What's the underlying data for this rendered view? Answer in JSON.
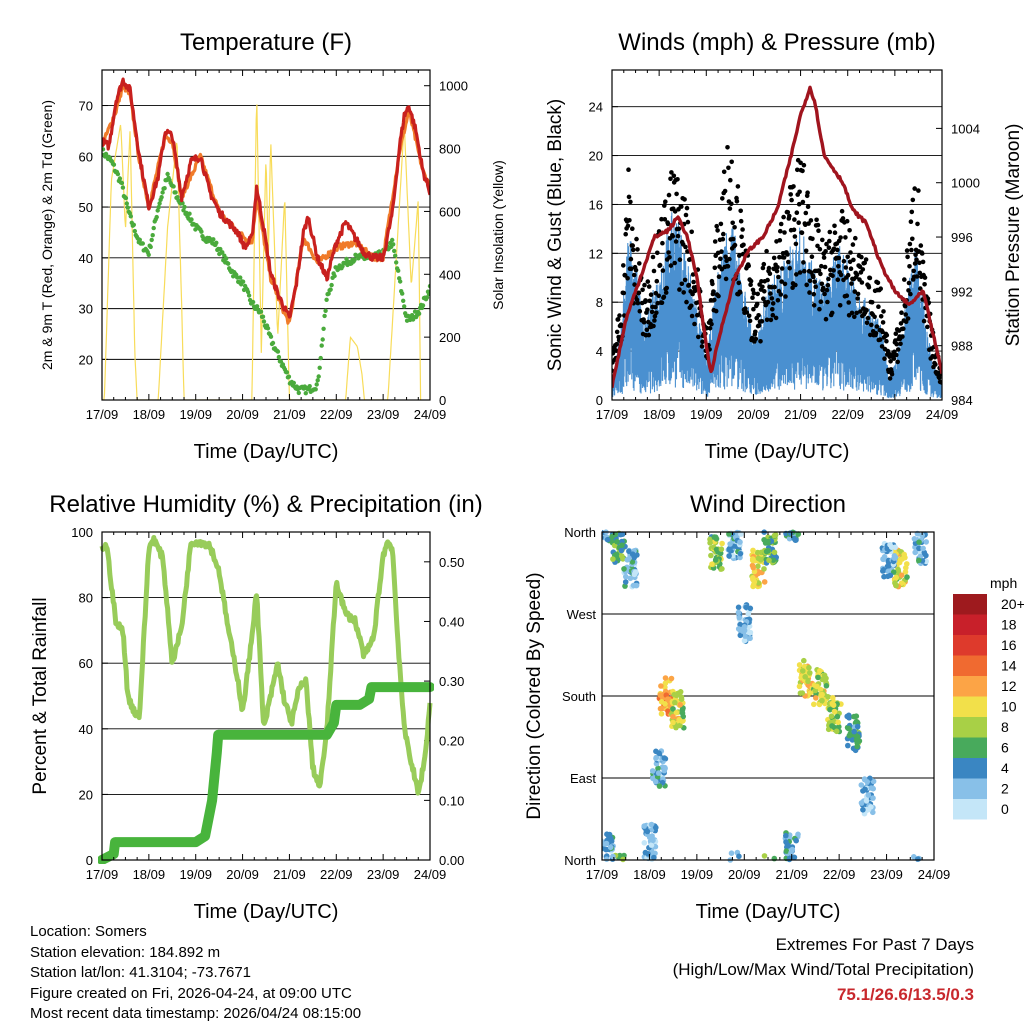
{
  "x_ticks": [
    "17/09",
    "18/09",
    "19/09",
    "20/09",
    "21/09",
    "22/09",
    "23/09",
    "24/09"
  ],
  "x_label": "Time (Day/UTC)",
  "colors": {
    "temp_2m": "#c8201e",
    "temp_9m": "#f07b2a",
    "dewpoint": "#4aaa3c",
    "solar": "#f8dc5a",
    "gust": "#000000",
    "wind": "#4a90d0",
    "pressure": "#a0141e",
    "rh": "#98cc5a",
    "precip": "#48b43c",
    "extremes": "#c8282d"
  },
  "chart_data": [
    {
      "id": "temperature",
      "type": "line",
      "title": "Temperature (F)",
      "ylabel": "2m & 9m T (Red, Orange) & 2m Td (Green)",
      "y2label": "Solar Insolation (Yellow)",
      "xlim": [
        0,
        7
      ],
      "ylim": [
        12,
        77
      ],
      "y2lim": [
        0,
        1050
      ],
      "yticks": [
        20,
        30,
        40,
        50,
        60,
        70
      ],
      "y2ticks": [
        0,
        200,
        400,
        600,
        800,
        1000
      ],
      "grid": true,
      "series": [
        {
          "name": "2m T",
          "axis": "left",
          "x": [
            0,
            0.15,
            0.3,
            0.45,
            0.6,
            0.8,
            1.0,
            1.2,
            1.35,
            1.5,
            1.7,
            1.9,
            2.1,
            2.3,
            2.5,
            2.7,
            2.9,
            3.05,
            3.2,
            3.3,
            3.45,
            3.6,
            3.75,
            3.9,
            4.0,
            4.15,
            4.3,
            4.4,
            4.6,
            4.8,
            5.0,
            5.2,
            5.4,
            5.6,
            5.8,
            6.0,
            6.2,
            6.35,
            6.45,
            6.55,
            6.7,
            6.85,
            7.0
          ],
          "values": [
            63,
            62,
            71,
            75,
            73,
            60,
            50,
            56,
            65,
            64,
            52,
            59,
            60,
            53,
            49,
            47,
            45,
            42,
            44,
            54,
            46,
            37,
            33,
            30,
            28,
            35,
            45,
            48,
            40,
            36,
            43,
            47,
            44,
            41,
            40,
            40,
            49,
            62,
            68,
            70,
            65,
            57,
            53
          ]
        },
        {
          "name": "9m T",
          "axis": "left",
          "x": [
            0,
            0.3,
            0.45,
            0.6,
            0.8,
            1.0,
            1.35,
            1.5,
            1.7,
            2.1,
            2.5,
            2.9,
            3.2,
            3.3,
            3.6,
            3.9,
            4.0,
            4.3,
            4.6,
            5.0,
            5.4,
            5.8,
            6.0,
            6.35,
            6.55,
            6.85,
            7.0
          ],
          "values": [
            62,
            69,
            74,
            72,
            59,
            50,
            64,
            63,
            52,
            60,
            49,
            45,
            43,
            52,
            36,
            29,
            27,
            44,
            39,
            42,
            43,
            40,
            40,
            61,
            69,
            57,
            54
          ]
        },
        {
          "name": "2m Td",
          "axis": "left",
          "x": [
            0,
            0.2,
            0.4,
            0.6,
            0.8,
            1.0,
            1.2,
            1.4,
            1.6,
            1.8,
            2.0,
            2.2,
            2.4,
            2.6,
            2.8,
            3.0,
            3.2,
            3.4,
            3.6,
            3.8,
            4.0,
            4.2,
            4.4,
            4.6,
            4.8,
            5.0,
            5.2,
            5.4,
            5.6,
            5.8,
            6.0,
            6.2,
            6.4,
            6.5,
            6.6,
            6.8,
            7.0
          ],
          "values": [
            61,
            59,
            55,
            48,
            43,
            41,
            50,
            56,
            52,
            49,
            46,
            44,
            43,
            40,
            37,
            35,
            31,
            29,
            24,
            20,
            16,
            14,
            14,
            15,
            32,
            38,
            39,
            40,
            40,
            40,
            41,
            43,
            33,
            28,
            28,
            30,
            34
          ]
        },
        {
          "name": "Solar",
          "axis": "right",
          "x": [
            0,
            0.05,
            0.2,
            0.4,
            0.5,
            0.6,
            0.7,
            0.75,
            1.2,
            1.4,
            1.6,
            1.7,
            1.75,
            3.2,
            3.3,
            3.4,
            3.5,
            3.55,
            3.6,
            3.75,
            3.9,
            4.0,
            5.2,
            5.3,
            5.45,
            5.55,
            5.6,
            6.1,
            6.3,
            6.45,
            6.6,
            6.75,
            6.8
          ],
          "values": [
            0,
            0,
            700,
            880,
            540,
            860,
            150,
            0,
            0,
            550,
            830,
            300,
            0,
            0,
            980,
            150,
            780,
            450,
            830,
            200,
            650,
            0,
            0,
            200,
            170,
            80,
            0,
            0,
            500,
            880,
            360,
            640,
            0
          ]
        }
      ]
    },
    {
      "id": "winds",
      "type": "line",
      "title": "Winds (mph) & Pressure (mb)",
      "ylabel": "Sonic Wind & Gust (Blue, Black)",
      "y2label": "Station Pressure (Maroon)",
      "xlim": [
        0,
        7
      ],
      "ylim": [
        0,
        27
      ],
      "y2lim": [
        984,
        1008.3
      ],
      "yticks": [
        0,
        4,
        8,
        12,
        16,
        20,
        24
      ],
      "y2ticks": [
        984,
        988,
        992,
        996,
        1000,
        1004
      ],
      "grid": true,
      "series": [
        {
          "name": "Gust",
          "axis": "left",
          "x": [
            0,
            0.2,
            0.35,
            0.5,
            0.7,
            1.0,
            1.3,
            1.55,
            1.8,
            2.0,
            2.2,
            2.5,
            2.8,
            3.05,
            3.3,
            3.6,
            3.8,
            4.0,
            4.25,
            4.5,
            4.8,
            5.1,
            5.4,
            5.7,
            5.9,
            6.1,
            6.3,
            6.45,
            6.6,
            6.8,
            7.0
          ],
          "values": [
            3,
            8,
            17,
            12,
            8,
            13,
            17,
            15,
            10,
            5,
            12,
            20,
            12,
            7,
            11,
            13,
            16,
            18,
            14,
            11,
            14,
            12,
            10,
            8,
            3,
            6,
            12,
            18,
            10,
            5,
            2
          ]
        },
        {
          "name": "Wind",
          "axis": "left",
          "x": [
            0,
            0.2,
            0.35,
            0.5,
            0.7,
            1.0,
            1.3,
            1.55,
            1.8,
            2.0,
            2.2,
            2.5,
            2.8,
            3.05,
            3.3,
            3.6,
            3.8,
            4.0,
            4.25,
            4.5,
            4.8,
            5.1,
            5.4,
            5.7,
            5.9,
            6.1,
            6.3,
            6.45,
            6.6,
            6.8,
            7.0
          ],
          "values": [
            1,
            4,
            9,
            7,
            4,
            7,
            10,
            8,
            5,
            2,
            6,
            10,
            6,
            3,
            6,
            7,
            8,
            9,
            7,
            6,
            8,
            7,
            5,
            4,
            1,
            3,
            6,
            9,
            5,
            2,
            1
          ]
        },
        {
          "name": "Pressure",
          "axis": "right",
          "x": [
            0,
            0.3,
            0.6,
            0.9,
            1.2,
            1.4,
            1.6,
            1.8,
            2.0,
            2.1,
            2.3,
            2.6,
            2.9,
            3.2,
            3.5,
            3.8,
            4.0,
            4.2,
            4.3,
            4.5,
            4.7,
            4.9,
            5.1,
            5.4,
            5.7,
            6.0,
            6.3,
            6.6,
            6.8,
            7.0
          ],
          "values": [
            985,
            990,
            993,
            996,
            996.5,
            997.5,
            996,
            993,
            988,
            986,
            989,
            993,
            995,
            996,
            998,
            1002,
            1005,
            1007,
            1006,
            1002,
            1001,
            1000,
            998,
            997,
            994,
            992,
            991,
            992,
            989,
            986
          ]
        }
      ]
    },
    {
      "id": "humidity",
      "type": "line",
      "title": "Relative Humidity (%) & Precipitation (in)",
      "ylabel": "Percent & Total Rainfall",
      "xlim": [
        0,
        7
      ],
      "ylim": [
        0,
        100
      ],
      "y2lim": [
        0,
        0.55
      ],
      "yticks": [
        0,
        20,
        40,
        60,
        80,
        100
      ],
      "y2ticks": [
        "0.00",
        "0.10",
        "0.20",
        "0.30",
        "0.40",
        "0.50"
      ],
      "grid": true,
      "series": [
        {
          "name": "RH",
          "axis": "left",
          "x": [
            0,
            0.1,
            0.3,
            0.45,
            0.55,
            0.7,
            0.8,
            1.0,
            1.1,
            1.3,
            1.5,
            1.7,
            1.9,
            2.1,
            2.3,
            2.5,
            2.7,
            2.9,
            3.0,
            3.15,
            3.3,
            3.45,
            3.6,
            3.75,
            3.9,
            4.05,
            4.2,
            4.35,
            4.5,
            4.65,
            4.8,
            5.0,
            5.2,
            5.4,
            5.6,
            5.8,
            6.0,
            6.1,
            6.2,
            6.3,
            6.45,
            6.6,
            6.75,
            6.9,
            7.0
          ],
          "values": [
            95,
            96,
            72,
            70,
            50,
            45,
            44,
            95,
            98,
            92,
            60,
            71,
            97,
            97,
            96,
            88,
            70,
            55,
            45,
            62,
            82,
            40,
            50,
            60,
            48,
            42,
            52,
            55,
            28,
            22,
            40,
            85,
            75,
            73,
            62,
            68,
            93,
            97,
            95,
            70,
            40,
            30,
            20,
            32,
            48
          ]
        },
        {
          "name": "Precip",
          "axis": "right",
          "x": [
            0,
            0.25,
            0.28,
            0.6,
            1.0,
            1.5,
            2.0,
            2.2,
            2.35,
            2.45,
            2.48,
            3.0,
            3.5,
            4.0,
            4.5,
            4.8,
            4.95,
            5.0,
            5.5,
            5.7,
            5.75,
            6.0,
            6.5,
            7.0
          ],
          "values": [
            0,
            0.01,
            0.03,
            0.03,
            0.03,
            0.03,
            0.03,
            0.04,
            0.1,
            0.18,
            0.21,
            0.21,
            0.21,
            0.21,
            0.21,
            0.21,
            0.23,
            0.26,
            0.26,
            0.27,
            0.29,
            0.29,
            0.29,
            0.29
          ]
        }
      ]
    },
    {
      "id": "direction",
      "type": "scatter",
      "title": "Wind Direction",
      "ylabel": "Direction (Colored By Speed)",
      "xlim": [
        0,
        7
      ],
      "ylim": [
        0,
        360
      ],
      "ytick_labels": [
        "North",
        "East",
        "South",
        "West",
        "North"
      ],
      "ytick_values": [
        0,
        90,
        180,
        270,
        360
      ],
      "grid": true,
      "legend": {
        "title": "mph",
        "labels": [
          "20+",
          "18",
          "16",
          "14",
          "12",
          "10",
          "8",
          "6",
          "4",
          "2",
          "0"
        ],
        "colors": [
          "#9e1a1e",
          "#c8202a",
          "#de3a2c",
          "#f06a30",
          "#fca446",
          "#f2e04a",
          "#a8d046",
          "#48aa5c",
          "#3a86c2",
          "#88c0e8",
          "#c4e6f8"
        ]
      },
      "clusters": [
        {
          "x": 0.35,
          "dir": 345,
          "spd": 6
        },
        {
          "x": 0.6,
          "dir": 320,
          "spd": 3
        },
        {
          "x": 0.1,
          "dir": 10,
          "spd": 3
        },
        {
          "x": 1.35,
          "dir": 180,
          "spd": 12
        },
        {
          "x": 1.6,
          "dir": 165,
          "spd": 9
        },
        {
          "x": 1.2,
          "dir": 100,
          "spd": 3
        },
        {
          "x": 1.0,
          "dir": 20,
          "spd": 2
        },
        {
          "x": 2.4,
          "dir": 335,
          "spd": 7
        },
        {
          "x": 2.8,
          "dir": 350,
          "spd": 3
        },
        {
          "x": 3.3,
          "dir": 320,
          "spd": 10
        },
        {
          "x": 3.55,
          "dir": 345,
          "spd": 6
        },
        {
          "x": 3.0,
          "dir": 260,
          "spd": 2
        },
        {
          "x": 4.3,
          "dir": 200,
          "spd": 10
        },
        {
          "x": 4.6,
          "dir": 190,
          "spd": 9
        },
        {
          "x": 4.9,
          "dir": 160,
          "spd": 8
        },
        {
          "x": 5.3,
          "dir": 140,
          "spd": 5
        },
        {
          "x": 5.6,
          "dir": 70,
          "spd": 2
        },
        {
          "x": 4.0,
          "dir": 10,
          "spd": 4
        },
        {
          "x": 6.3,
          "dir": 320,
          "spd": 9
        },
        {
          "x": 6.05,
          "dir": 330,
          "spd": 3
        },
        {
          "x": 6.7,
          "dir": 345,
          "spd": 3
        }
      ]
    }
  ],
  "info": {
    "location": "Location: Somers",
    "elevation": "Station elevation: 184.892 m",
    "latlon": "Station lat/lon: 41.3104; -73.7671",
    "created": "Figure created on Fri, 2026-04-24, at 09:00 UTC",
    "recent": "Most recent data timestamp: 2026/04/24 08:15:00"
  },
  "extremes": {
    "title": "Extremes For Past 7 Days",
    "subtitle": "(High/Low/Max Wind/Total Precipitation)",
    "values": "75.1/26.6/13.5/0.3"
  }
}
